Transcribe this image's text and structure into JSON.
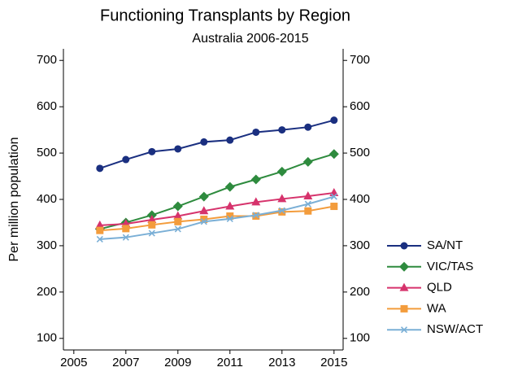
{
  "chart_data": {
    "type": "line",
    "title": "Functioning Transplants by Region",
    "subtitle": "Australia 2006-2015",
    "y_label": "Per million population",
    "x": [
      2006,
      2007,
      2008,
      2009,
      2010,
      2011,
      2012,
      2013,
      2014,
      2015
    ],
    "series": [
      {
        "name": "SA/NT",
        "color": "#1a2f80",
        "marker": "circle",
        "values": [
          467,
          486,
          503,
          509,
          524,
          528,
          545,
          550,
          556,
          571
        ]
      },
      {
        "name": "VIC/TAS",
        "color": "#2e8b3e",
        "marker": "diamond",
        "values": [
          336,
          350,
          366,
          385,
          406,
          427,
          443,
          460,
          481,
          498
        ]
      },
      {
        "name": "QLD",
        "color": "#d6336c",
        "marker": "triangle",
        "values": [
          344,
          347,
          356,
          364,
          375,
          385,
          394,
          401,
          407,
          414
        ]
      },
      {
        "name": "WA",
        "color": "#f39c3c",
        "marker": "square",
        "values": [
          333,
          337,
          345,
          352,
          357,
          364,
          364,
          373,
          375,
          385
        ]
      },
      {
        "name": "NSW/ACT",
        "color": "#7aafd6",
        "marker": "x",
        "values": [
          314,
          318,
          327,
          336,
          352,
          358,
          366,
          376,
          390,
          406
        ]
      }
    ],
    "xlim": [
      2004.6,
      2015.35
    ],
    "xticks": [
      2005,
      2007,
      2009,
      2011,
      2013,
      2015
    ],
    "ylim": [
      75,
      725
    ],
    "yticks": [
      100,
      200,
      300,
      400,
      500,
      600,
      700
    ],
    "y2lim": [
      75,
      725
    ],
    "y2ticks": [
      100,
      200,
      300,
      400,
      500,
      600,
      700
    ],
    "grid": false,
    "legend": "right"
  }
}
